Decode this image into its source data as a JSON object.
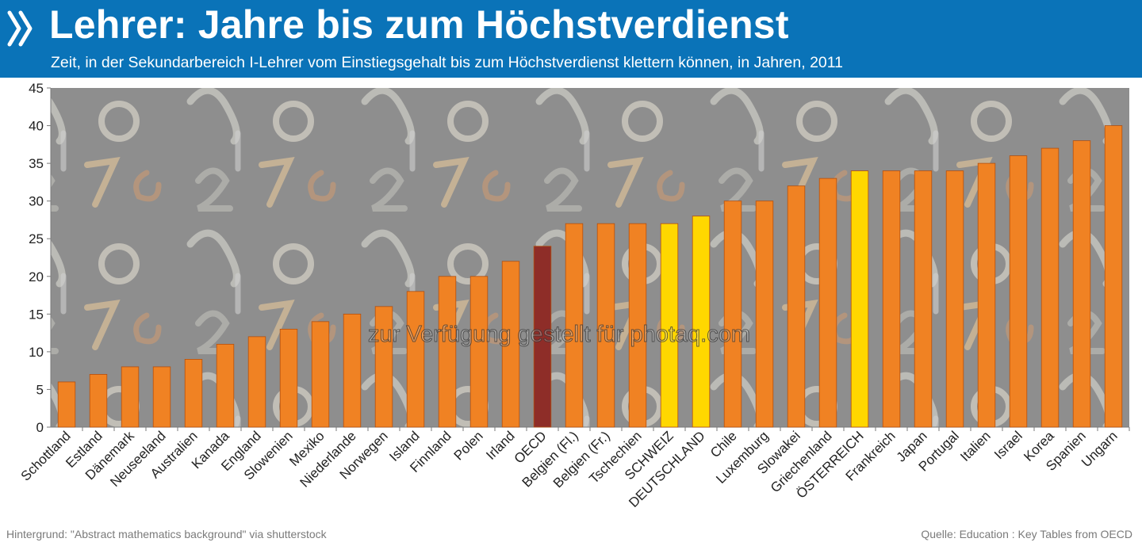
{
  "header": {
    "title": "Lehrer: Jahre bis zum Höchstverdienst",
    "subtitle": "Zeit, in der Sekundarbereich I-Lehrer vom Einstiegsgehalt bis zum Höchstverdienst klettern können, in Jahren, 2011"
  },
  "footer": {
    "left": "Hintergrund: \"Abstract mathematics background\" via shutterstock",
    "right": "Quelle: Education : Key Tables from OECD"
  },
  "watermark": "zur Verfügung gestellt für photaq.com",
  "colors": {
    "header_bg": "#0a73b8",
    "bar_default": "#f08223",
    "bar_highlight": "#ffd700",
    "bar_oecd": "#8e2d28",
    "plot_bg": "#8e8e8e"
  },
  "chart_data": {
    "type": "bar",
    "title": "Lehrer: Jahre bis zum Höchstverdienst",
    "xlabel": "",
    "ylabel": "",
    "ylim": [
      0,
      45
    ],
    "yticks": [
      0,
      5,
      10,
      15,
      20,
      25,
      30,
      35,
      40,
      45
    ],
    "grid": false,
    "legend": "none",
    "categories": [
      "Schottland",
      "Estland",
      "Dänemark",
      "Neuseeland",
      "Australien",
      "Kanada",
      "England",
      "Slowenien",
      "Mexiko",
      "Niederlande",
      "Norwegen",
      "Island",
      "Finnland",
      "Polen",
      "Irland",
      "OECD",
      "Belgien (Fl.)",
      "Belgien (Fr.)",
      "Tschechien",
      "SCHWEIZ",
      "DEUTSCHLAND",
      "Chile",
      "Luxemburg",
      "Slowakei",
      "Griechenland",
      "ÖSTERREICH",
      "Frankreich",
      "Japan",
      "Portugal",
      "Italien",
      "Israel",
      "Korea",
      "Spanien",
      "Ungarn"
    ],
    "values": [
      6,
      7,
      8,
      8,
      9,
      11,
      12,
      13,
      14,
      15,
      16,
      18,
      20,
      20,
      22,
      24,
      27,
      27,
      27,
      27,
      28,
      30,
      30,
      32,
      33,
      34,
      34,
      34,
      34,
      35,
      36,
      37,
      38,
      40
    ],
    "highlight": {
      "OECD": "oecd",
      "SCHWEIZ": "highlight",
      "DEUTSCHLAND": "highlight",
      "ÖSTERREICH": "highlight"
    }
  }
}
